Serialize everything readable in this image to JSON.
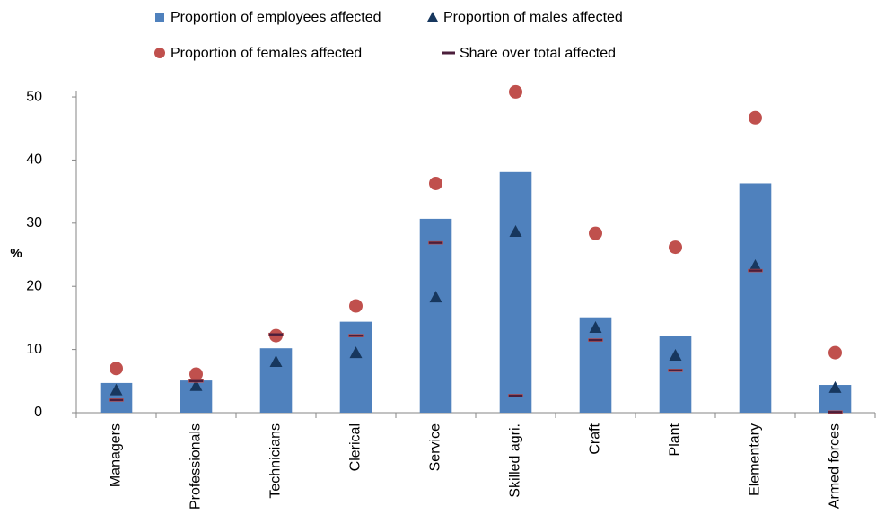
{
  "chart_data": {
    "type": "bar",
    "y_label": "%",
    "categories": [
      "Managers",
      "Professionals",
      "Technicians",
      "Clerical",
      "Service",
      "Skilled agri.",
      "Craft",
      "Plant",
      "Elementary",
      "Armed forces"
    ],
    "series": [
      {
        "name": "Proportion of employees affected",
        "marker": "bar",
        "color": "#4f81bd",
        "values": [
          4.7,
          5.1,
          10.2,
          14.4,
          30.7,
          38.1,
          15.1,
          12.1,
          36.3,
          4.4
        ]
      },
      {
        "name": "Proportion of males affected",
        "marker": "triangle",
        "color": "#17375e",
        "values": [
          3.6,
          4.3,
          8.1,
          9.5,
          18.3,
          28.7,
          13.5,
          9.1,
          23.3,
          4.0
        ]
      },
      {
        "name": "Proportion of females affected",
        "marker": "circle",
        "color": "#c0504d",
        "values": [
          7.0,
          6.1,
          12.2,
          16.9,
          36.3,
          50.8,
          28.4,
          26.2,
          46.7,
          9.5
        ]
      },
      {
        "name": "Share over total affected",
        "marker": "dash",
        "color": "#4b1e3b",
        "values": [
          2.0,
          5.0,
          12.4,
          12.2,
          26.9,
          2.7,
          11.5,
          6.7,
          22.5,
          0.1
        ]
      }
    ],
    "ylim": [
      0,
      51
    ],
    "yticks": [
      0,
      10,
      20,
      30,
      40,
      50
    ],
    "grid": false,
    "legend": "top"
  }
}
